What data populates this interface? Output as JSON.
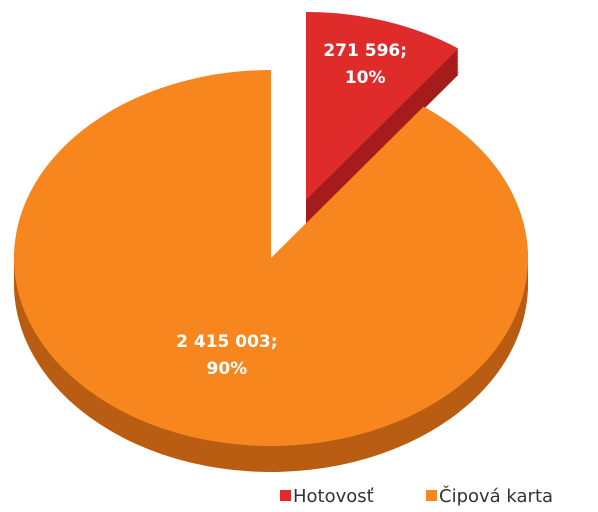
{
  "chart_data": {
    "type": "pie",
    "categories": [
      "Hotovosť",
      "Čipová karta"
    ],
    "values": [
      271596,
      2415003
    ],
    "value_labels": [
      "271 596;",
      "2 415 003;"
    ],
    "percents": [
      10,
      90
    ],
    "percent_labels": [
      "10%",
      "90%"
    ],
    "colors": [
      "#e02b2b",
      "#f7861f"
    ],
    "side_colors": [
      "#a51c1c",
      "#b85d12"
    ],
    "exploded": [
      true,
      false
    ],
    "legend": "bottom-right"
  }
}
